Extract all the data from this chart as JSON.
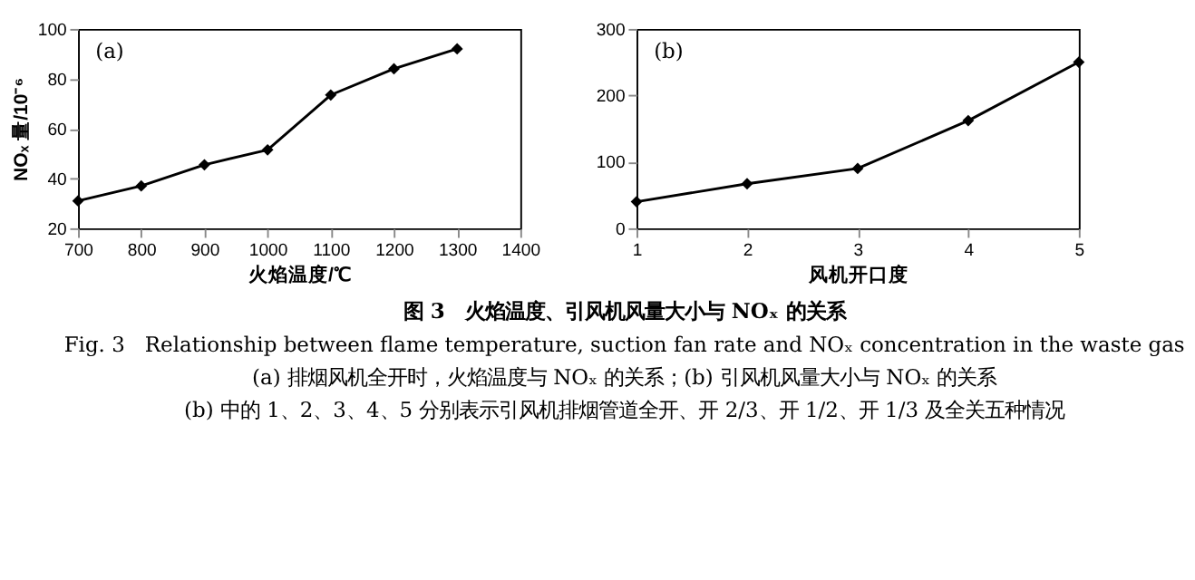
{
  "chart_data": [
    {
      "type": "line",
      "x": [
        700,
        800,
        900,
        1000,
        1100,
        1200,
        1300
      ],
      "values": [
        31,
        37,
        45.5,
        51.5,
        73.5,
        84,
        92
      ],
      "color": "#000000",
      "xlim": [
        700,
        1400
      ],
      "xticks": [
        700,
        800,
        900,
        1000,
        1100,
        1200,
        1300,
        1400
      ],
      "ylim": [
        20,
        100
      ],
      "yticks": [
        20,
        40,
        60,
        80,
        100
      ],
      "xlabel": "火焰温度/℃",
      "ylabel": "NOₓ 量/10⁻⁶",
      "annotations": [
        "(a)"
      ],
      "marker": "diamond",
      "line_style": "solid",
      "grid": false
    },
    {
      "type": "line",
      "x": [
        1,
        2,
        3,
        4,
        5
      ],
      "values": [
        40,
        67,
        90,
        162,
        250
      ],
      "color": "#000000",
      "xlim": [
        1,
        5
      ],
      "xticks": [
        1,
        2,
        3,
        4,
        5
      ],
      "ylim": [
        0,
        300
      ],
      "yticks": [
        0,
        100,
        200,
        300
      ],
      "xlabel": "风机开口度",
      "annotations": [
        "(b)"
      ],
      "marker": "diamond",
      "line_style": "solid",
      "grid": false
    },
    {
      "type": "other",
      "title": "图 3　火焰温度、引风机风量大小与 NOₓ 的关系",
      "annotations": [
        "Fig. 3　Relationship between flame temperature, suction fan rate and NOₓ concentration in the waste gas",
        "(a) 排烟风机全开时，火焰温度与 NOₓ 的关系；(b) 引风机风量大小与 NOₓ 的关系",
        "(b) 中的 1、2、3、4、5 分别表示引风机排烟管道全开、开 2/3、开 1/2、开 1/3 及全关五种情况"
      ]
    }
  ]
}
